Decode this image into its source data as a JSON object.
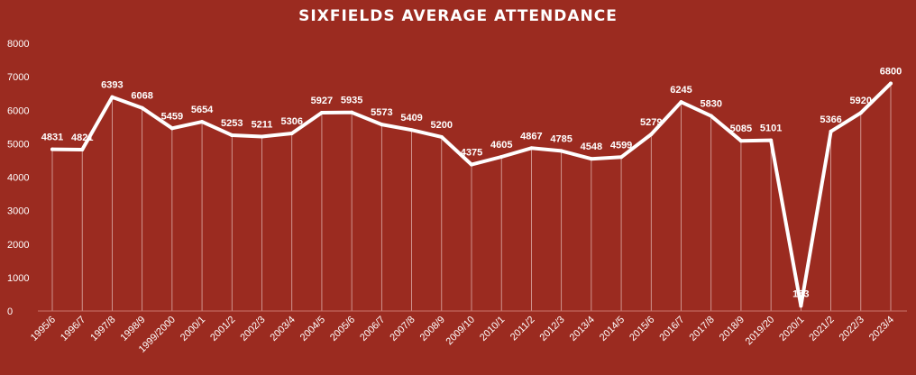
{
  "chart_data": {
    "type": "line",
    "title": "SIXFIELDS AVERAGE ATTENDANCE",
    "xlabel": "",
    "ylabel": "",
    "ylim": [
      0,
      8000
    ],
    "yticks": [
      0,
      1000,
      2000,
      3000,
      4000,
      5000,
      6000,
      7000,
      8000
    ],
    "grid": "vertical drop lines at each category",
    "legend": "none",
    "colors": {
      "background": "#9b2b20",
      "line": "#ffffff",
      "text": "#ffffff"
    },
    "categories": [
      "1995/6",
      "1996/7",
      "1997/8",
      "1998/9",
      "1999/2000",
      "2000/1",
      "2001/2",
      "2002/3",
      "2003/4",
      "2004/5",
      "2005/6",
      "2006/7",
      "2007/8",
      "2008/9",
      "2009/10",
      "2010/1",
      "2011/2",
      "2012/3",
      "2013/4",
      "2014/5",
      "2015/6",
      "2016/7",
      "2017/8",
      "2018/9",
      "2019/20",
      "2020/1",
      "2021/2",
      "2022/3",
      "2023/4"
    ],
    "values": [
      4831,
      4821,
      6393,
      6068,
      5459,
      5654,
      5253,
      5211,
      5306,
      5927,
      5935,
      5573,
      5409,
      5200,
      4375,
      4605,
      4867,
      4785,
      4548,
      4599,
      5279,
      6245,
      5830,
      5085,
      5101,
      153,
      5366,
      5920,
      6800
    ],
    "data_labels": [
      "4831",
      "4821",
      "6393",
      "6068",
      "5459",
      "5654",
      "5253",
      "5211",
      "5306",
      "5927",
      "5935",
      "5573",
      "5409",
      "5200",
      "4375",
      "4605",
      "4867",
      "4785",
      "4548",
      "4599",
      "5279",
      "6245",
      "5830",
      "5085",
      "5101",
      "153",
      "5366",
      "5920",
      "6800"
    ]
  }
}
